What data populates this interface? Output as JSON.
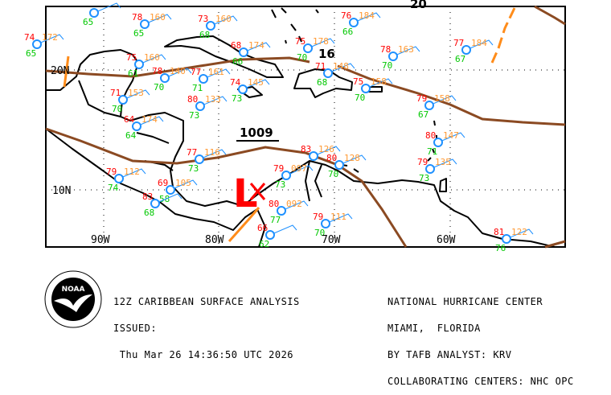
{
  "map": {
    "grid_labels": {
      "lat": [
        "20N",
        "10N"
      ],
      "lon": [
        "90W",
        "80W",
        "70W",
        "60W"
      ]
    },
    "isobar_labels": [
      "20",
      "16",
      "1009"
    ],
    "low_center": "L",
    "colors": {
      "temperature": "#ff0000",
      "dewpoint": "#00c800",
      "pressure": "#ff9933",
      "station": "#1e90ff",
      "trough": "#8b4a22",
      "front": "#ff8c1a",
      "low": "#ff0000"
    },
    "stations": [
      {
        "t": "",
        "d": "65",
        "p": ""
      },
      {
        "t": "78",
        "d": "65",
        "p": "160"
      },
      {
        "t": "74",
        "d": "65",
        "p": "172"
      },
      {
        "t": "73",
        "d": "68",
        "p": "160"
      },
      {
        "t": "68",
        "d": "66",
        "p": "174"
      },
      {
        "t": "75",
        "d": "61",
        "p": "160"
      },
      {
        "t": "78",
        "d": "70",
        "p": "140"
      },
      {
        "t": "77",
        "d": "71",
        "p": "161"
      },
      {
        "t": "74",
        "d": "73",
        "p": "145"
      },
      {
        "t": "71",
        "d": "70",
        "p": "153"
      },
      {
        "t": "80",
        "d": "73",
        "p": "133"
      },
      {
        "t": "64",
        "d": "64",
        "p": "174"
      },
      {
        "t": "75",
        "d": "70",
        "p": "178"
      },
      {
        "t": "76",
        "d": "66",
        "p": "184"
      },
      {
        "t": "78",
        "d": "70",
        "p": "163"
      },
      {
        "t": "77",
        "d": "67",
        "p": "184"
      },
      {
        "t": "71",
        "d": "68",
        "p": "148"
      },
      {
        "t": "75",
        "d": "70",
        "p": "158"
      },
      {
        "t": "79",
        "d": "67",
        "p": "158"
      },
      {
        "t": "77",
        "d": "73",
        "p": "116"
      },
      {
        "t": "79",
        "d": "74",
        "p": "112"
      },
      {
        "t": "69",
        "d": "58",
        "p": "105"
      },
      {
        "t": "83",
        "d": "68",
        "p": ""
      },
      {
        "t": "79",
        "d": "73",
        "p": "097"
      },
      {
        "t": "80",
        "d": "77",
        "p": "092"
      },
      {
        "t": "66",
        "d": "62",
        "p": ""
      },
      {
        "t": "83",
        "d": "",
        "p": "126"
      },
      {
        "t": "80",
        "d": "70",
        "p": "128"
      },
      {
        "t": "80",
        "d": "71",
        "p": "147"
      },
      {
        "t": "79",
        "d": "73",
        "p": "135"
      },
      {
        "t": "79",
        "d": "70",
        "p": "111"
      },
      {
        "t": "81",
        "d": "76",
        "p": "122"
      }
    ]
  },
  "footer": {
    "title": "12Z CARIBBEAN SURFACE ANALYSIS",
    "issued_label": "ISSUED:",
    "issued_time": " Thu Mar 26 14:36:50 UTC 2026",
    "center": "NATIONAL HURRICANE CENTER",
    "location": "MIAMI,  FLORIDA",
    "analyst": "BY TAFB ANALYST: KRV",
    "collab": "COLLABORATING CENTERS: NHC OPC",
    "logo_text": "NOAA"
  }
}
